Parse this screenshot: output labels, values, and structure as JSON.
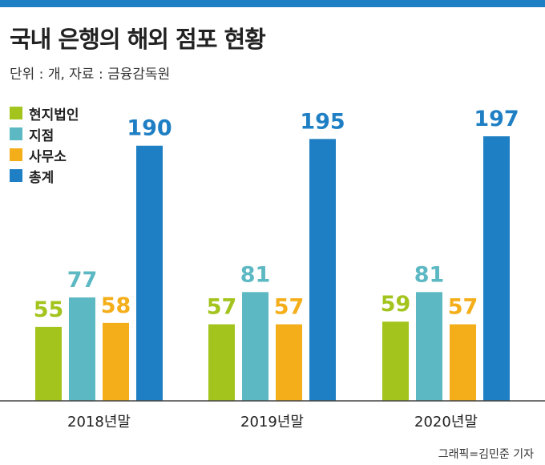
{
  "header": {
    "title": "국내 은행의 해외 점포 현황",
    "subtitle": "단위 : 개, 자료 : 금융감독원",
    "credit": "그래픽=김민준 기자"
  },
  "colors": {
    "rule": "#1f7fc4",
    "local_corp": "#a3c41d",
    "branch": "#5cb8c2",
    "office": "#f4ae1a",
    "total": "#1f7fc4"
  },
  "chart_data": {
    "type": "bar",
    "categories": [
      "2018년말",
      "2019년말",
      "2020년말"
    ],
    "series": [
      {
        "name": "현지법인",
        "color": "#a3c41d",
        "values": [
          55,
          57,
          59
        ]
      },
      {
        "name": "지점",
        "color": "#5cb8c2",
        "values": [
          77,
          81,
          81
        ]
      },
      {
        "name": "사무소",
        "color": "#f4ae1a",
        "values": [
          58,
          57,
          57
        ]
      },
      {
        "name": "총계",
        "color": "#1f7fc4",
        "values": [
          190,
          195,
          197
        ]
      }
    ],
    "ylim": [
      0,
      197
    ],
    "grid": false,
    "legend_position": "top-left"
  }
}
